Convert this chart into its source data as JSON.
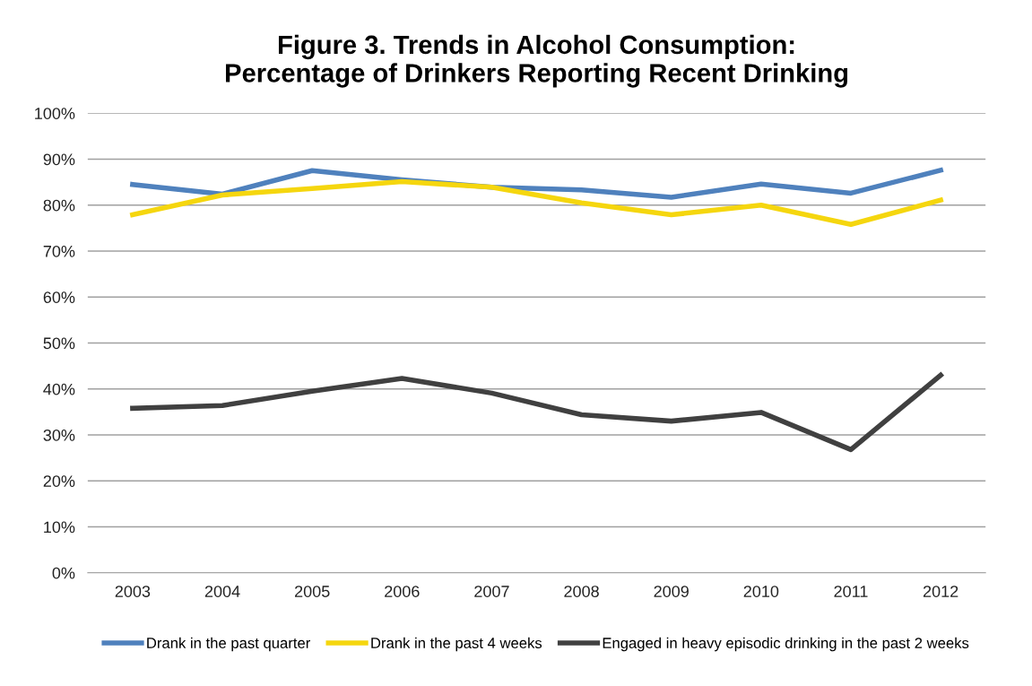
{
  "chart_data": {
    "type": "line",
    "title": "Figure 3. Trends in Alcohol Consumption:\nPercentage of Drinkers Reporting Recent Drinking",
    "categories": [
      "2003",
      "2004",
      "2005",
      "2006",
      "2007",
      "2008",
      "2009",
      "2010",
      "2011",
      "2012"
    ],
    "series": [
      {
        "name": "Drank in the past quarter",
        "color": "#4f81bd",
        "values": [
          84.5,
          82.4,
          87.5,
          85.5,
          83.9,
          83.3,
          81.7,
          84.6,
          82.6,
          87.6
        ]
      },
      {
        "name": "Drank in the past 4 weeks",
        "color": "#f5d60e",
        "values": [
          77.9,
          82.2,
          83.6,
          85.1,
          83.9,
          80.5,
          77.9,
          80.0,
          75.8,
          81.1
        ]
      },
      {
        "name": "Engaged in heavy episodic drinking in the past 2 weeks",
        "color": "#404040",
        "values": [
          35.8,
          36.4,
          39.5,
          42.3,
          39.1,
          34.4,
          33.0,
          34.9,
          26.8,
          43.0
        ]
      }
    ],
    "ylim": [
      0,
      100
    ],
    "yticks": [
      {
        "value": 0,
        "label": "0%"
      },
      {
        "value": 10,
        "label": "10%"
      },
      {
        "value": 20,
        "label": "20%"
      },
      {
        "value": 30,
        "label": "30%"
      },
      {
        "value": 40,
        "label": "40%"
      },
      {
        "value": 50,
        "label": "50%"
      },
      {
        "value": 60,
        "label": "60%"
      },
      {
        "value": 70,
        "label": "70%"
      },
      {
        "value": 80,
        "label": "80%"
      },
      {
        "value": 90,
        "label": "90%"
      },
      {
        "value": 100,
        "label": "100%"
      }
    ],
    "grid": "y",
    "legend": "bottom",
    "marker": "none",
    "line_style": "solid"
  }
}
